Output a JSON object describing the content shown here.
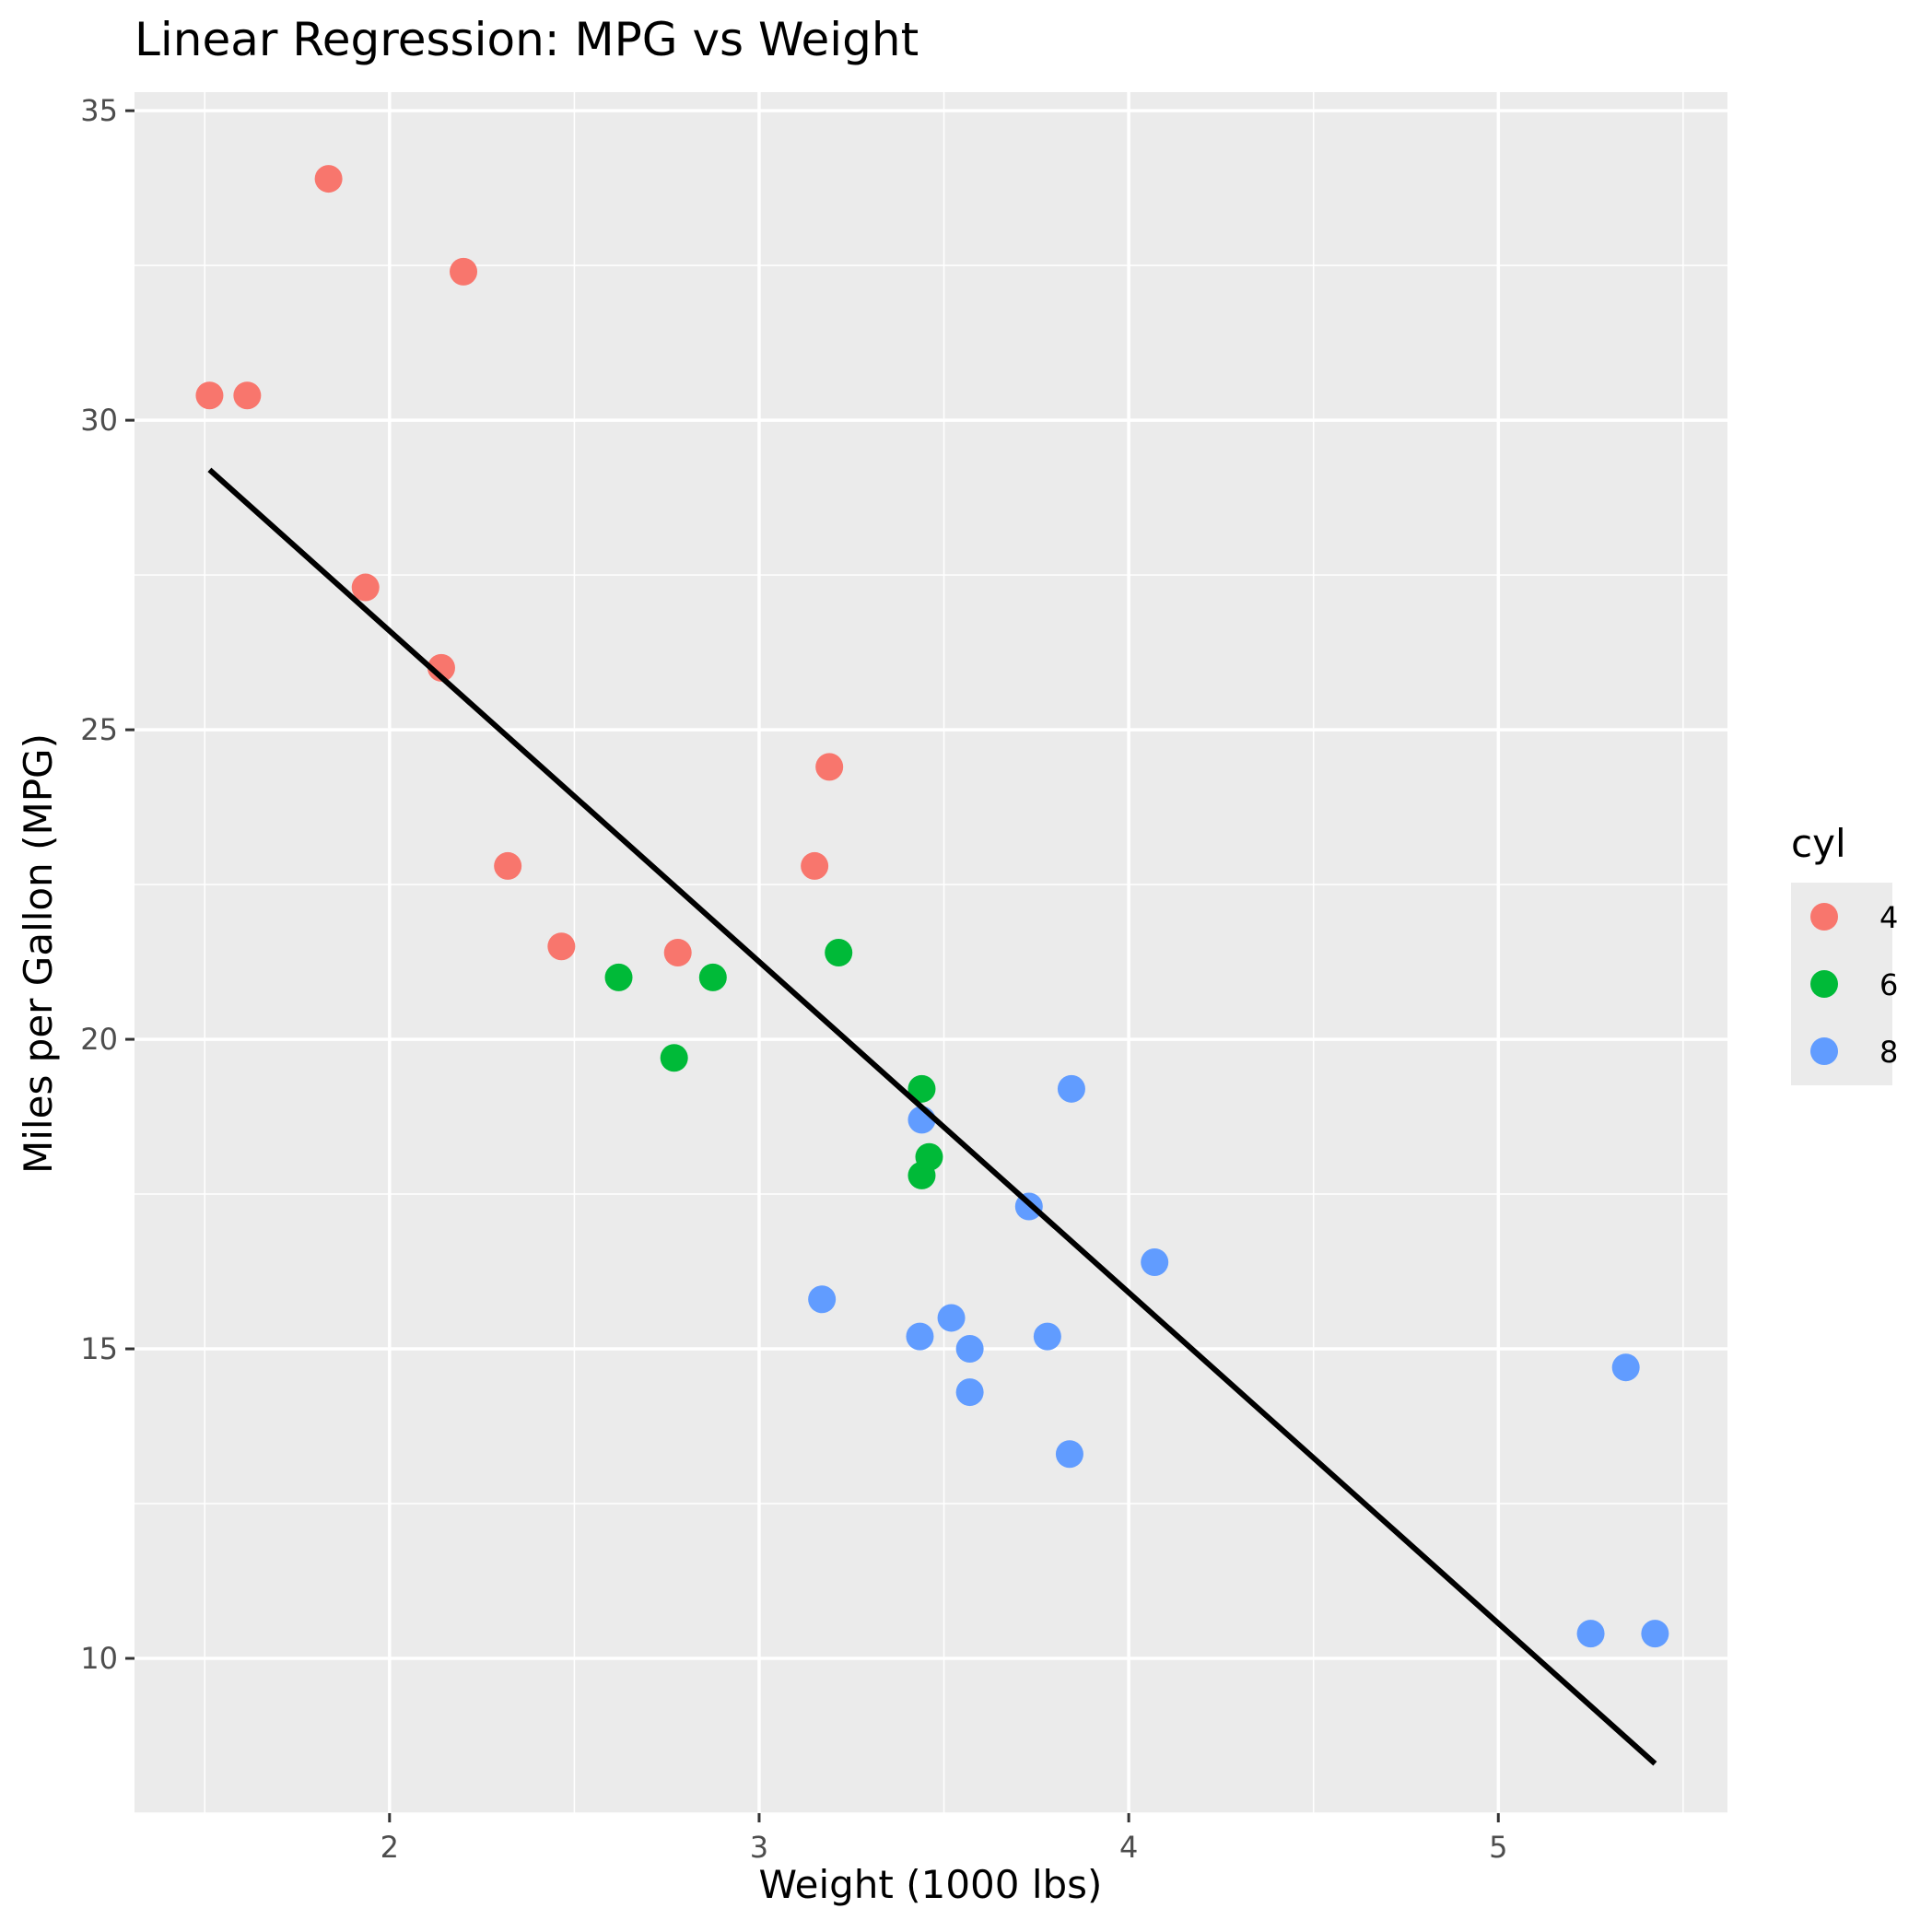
{
  "chart_data": {
    "type": "scatter",
    "title": "Linear Regression: MPG vs Weight",
    "xlabel": "Weight (1000 lbs)",
    "ylabel": "Miles per Gallon (MPG)",
    "xlim": [
      1.31,
      5.62
    ],
    "ylim": [
      7.5,
      35.3
    ],
    "x_ticks": [
      2,
      3,
      4,
      5
    ],
    "y_ticks": [
      10,
      15,
      20,
      25,
      30,
      35
    ],
    "grid": true,
    "background": "#ebebeb",
    "legend": {
      "title": "cyl",
      "placement": "right",
      "entries": [
        {
          "label": "4",
          "color": "#f8766d"
        },
        {
          "label": "6",
          "color": "#00ba38"
        },
        {
          "label": "8",
          "color": "#619cff"
        }
      ]
    },
    "series": [
      {
        "name": "4",
        "color": "#f8766d",
        "points": [
          [
            1.513,
            30.4
          ],
          [
            1.615,
            30.4
          ],
          [
            1.835,
            33.9
          ],
          [
            1.935,
            27.3
          ],
          [
            2.14,
            26.0
          ],
          [
            2.2,
            32.4
          ],
          [
            2.32,
            22.8
          ],
          [
            2.465,
            21.5
          ],
          [
            2.78,
            21.4
          ],
          [
            3.15,
            22.8
          ],
          [
            3.19,
            24.4
          ]
        ]
      },
      {
        "name": "6",
        "color": "#00ba38",
        "points": [
          [
            2.62,
            21.0
          ],
          [
            2.77,
            19.7
          ],
          [
            2.875,
            21.0
          ],
          [
            3.215,
            21.4
          ],
          [
            3.44,
            19.2
          ],
          [
            3.44,
            17.8
          ],
          [
            3.46,
            18.1
          ]
        ]
      },
      {
        "name": "8",
        "color": "#619cff",
        "points": [
          [
            3.17,
            15.8
          ],
          [
            3.435,
            15.2
          ],
          [
            3.44,
            18.7
          ],
          [
            3.52,
            15.5
          ],
          [
            3.57,
            15.0
          ],
          [
            3.57,
            14.3
          ],
          [
            3.73,
            17.3
          ],
          [
            3.78,
            15.2
          ],
          [
            3.84,
            13.3
          ],
          [
            3.845,
            19.2
          ],
          [
            4.07,
            16.4
          ],
          [
            5.25,
            10.4
          ],
          [
            5.345,
            14.7
          ],
          [
            5.424,
            10.4
          ]
        ]
      }
    ],
    "regression_line": {
      "color": "#000000",
      "points": [
        [
          1.513,
          29.2
        ],
        [
          5.424,
          8.3
        ]
      ]
    }
  }
}
